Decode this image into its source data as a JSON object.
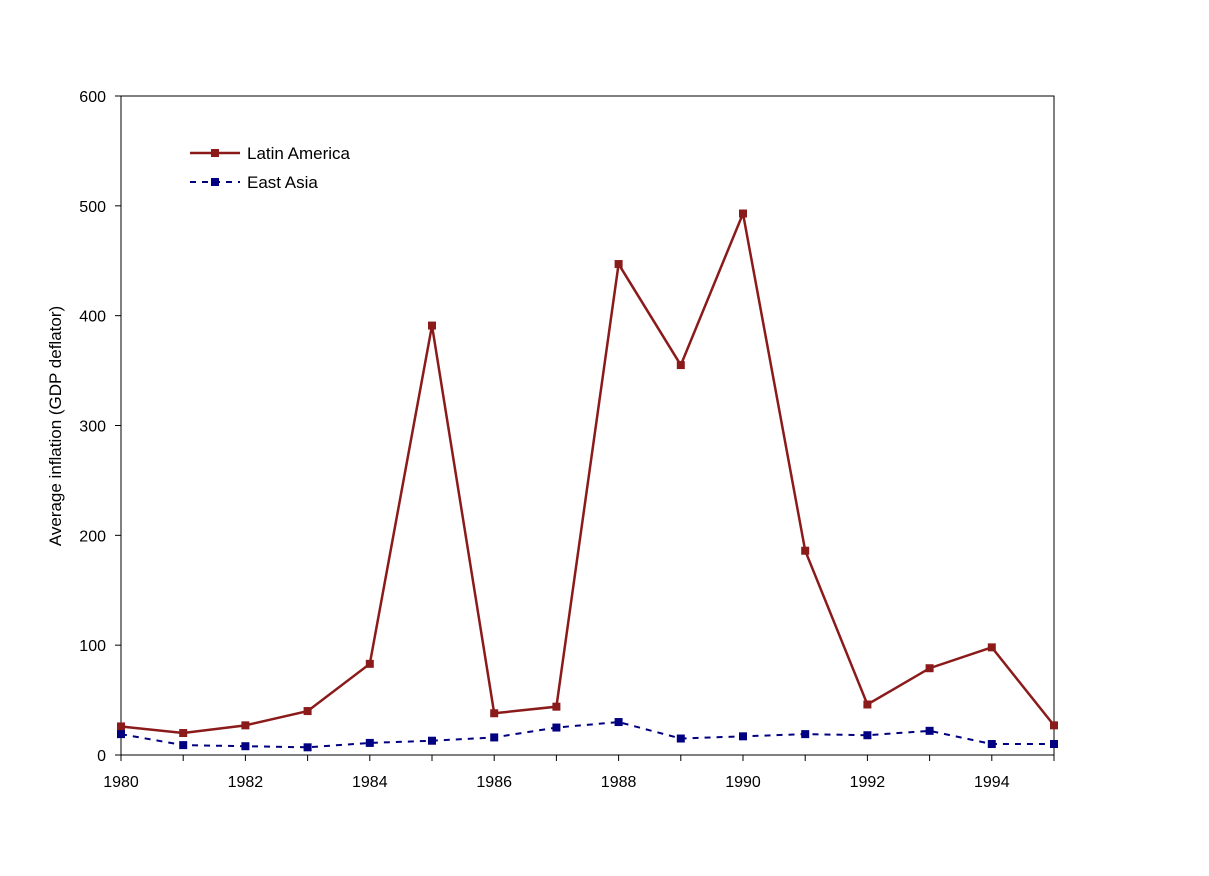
{
  "chart_data": {
    "type": "line",
    "title": "",
    "xlabel": "",
    "ylabel": "Average inflation (GDP deflator)",
    "x": [
      1980,
      1981,
      1982,
      1983,
      1984,
      1985,
      1986,
      1987,
      1988,
      1989,
      1990,
      1991,
      1992,
      1993,
      1994,
      1995
    ],
    "x_ticks": [
      "1980",
      "1982",
      "1984",
      "1986",
      "1988",
      "1990",
      "1992",
      "1994"
    ],
    "xlim": [
      1980,
      1995
    ],
    "ylim": [
      0,
      600
    ],
    "y_ticks": [
      "0",
      "100",
      "200",
      "300",
      "400",
      "500",
      "600"
    ],
    "grid": false,
    "legend_position": "top-left",
    "series": [
      {
        "name": "Latin America",
        "color": "#8B1A1A",
        "line_style": "solid",
        "values": [
          26,
          20,
          27,
          40,
          83,
          391,
          38,
          44,
          447,
          355,
          493,
          186,
          46,
          79,
          98,
          27
        ]
      },
      {
        "name": "East Asia",
        "color": "#000080",
        "line_style": "dashed",
        "values": [
          19,
          9,
          8,
          7,
          11,
          13,
          16,
          25,
          30,
          15,
          17,
          19,
          18,
          22,
          10,
          10
        ]
      }
    ]
  }
}
